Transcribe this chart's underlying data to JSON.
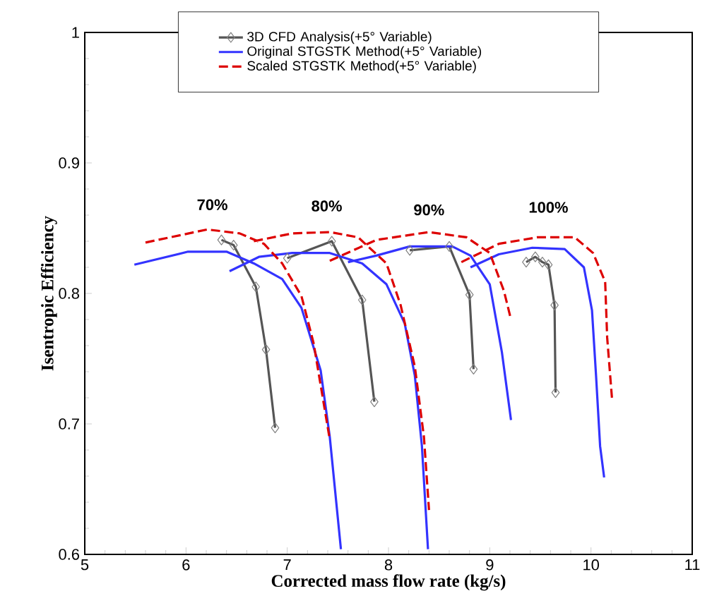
{
  "chart_data": {
    "type": "line",
    "xlabel": "Corrected mass flow rate (kg/s)",
    "ylabel": "Isentropic Efficiency",
    "xlim": [
      5,
      11
    ],
    "ylim": [
      0.6,
      1
    ],
    "xticks": [
      5,
      6,
      7,
      8,
      9,
      10,
      11
    ],
    "yticks": [
      0.6,
      0.7,
      0.8,
      0.9,
      1
    ],
    "legend": "top",
    "grid": false,
    "annotations": [
      "70%",
      "80%",
      "90%",
      "100%"
    ],
    "series": [
      {
        "name": "3D CFD Analysis(+5° Variable)",
        "color": "#555555",
        "marker": "diamond",
        "line_style": "solid",
        "x": [
          6.35,
          6.47,
          6.69,
          6.79,
          6.88,
          null,
          7.0,
          7.44,
          7.74,
          7.86,
          null,
          8.21,
          8.6,
          8.8,
          8.84,
          null,
          9.36,
          9.45,
          9.52,
          9.58,
          9.64,
          9.65
        ],
        "values": [
          0.841,
          0.837,
          0.805,
          0.757,
          0.697,
          null,
          0.827,
          0.84,
          0.795,
          0.717,
          null,
          0.833,
          0.836,
          0.799,
          0.742,
          null,
          0.824,
          0.828,
          0.824,
          0.822,
          0.791,
          0.724
        ]
      },
      {
        "name": "Original STGSTK Method(+5° Variable)",
        "color": "#3333ff",
        "marker": "none",
        "line_style": "solid",
        "x": [
          5.49,
          6.02,
          6.4,
          6.67,
          6.95,
          7.14,
          7.33,
          7.42,
          7.53,
          null,
          6.43,
          6.72,
          7.05,
          7.42,
          7.74,
          7.98,
          8.16,
          8.26,
          8.33,
          8.39,
          null,
          7.6,
          7.88,
          8.21,
          8.63,
          8.81,
          9.0,
          9.12,
          9.21,
          null,
          8.81,
          9.09,
          9.42,
          9.74,
          9.93,
          10.01,
          10.05,
          10.09,
          10.13
        ],
        "values": [
          0.822,
          0.832,
          0.832,
          0.823,
          0.811,
          0.789,
          0.741,
          0.69,
          0.604,
          null,
          0.817,
          0.828,
          0.831,
          0.831,
          0.823,
          0.807,
          0.777,
          0.737,
          0.683,
          0.604,
          null,
          0.824,
          0.829,
          0.836,
          0.836,
          0.829,
          0.807,
          0.755,
          0.703,
          null,
          0.82,
          0.83,
          0.835,
          0.834,
          0.82,
          0.787,
          0.737,
          0.683,
          0.659
        ]
      },
      {
        "name": "Scaled STGSTK Method(+5° Variable)",
        "color": "#dd0000",
        "marker": "none",
        "line_style": "dashed",
        "x": [
          5.6,
          6.21,
          6.53,
          6.77,
          6.95,
          7.14,
          7.26,
          7.42,
          null,
          6.67,
          7.05,
          7.42,
          7.7,
          7.98,
          8.12,
          8.26,
          8.35,
          8.4,
          null,
          7.42,
          7.88,
          8.4,
          8.77,
          9.0,
          9.14,
          9.21,
          null,
          8.72,
          9.09,
          9.47,
          9.84,
          10.02,
          10.14,
          10.16,
          10.21
        ],
        "values": [
          0.839,
          0.849,
          0.846,
          0.838,
          0.823,
          0.798,
          0.762,
          0.688,
          null,
          0.84,
          0.846,
          0.847,
          0.843,
          0.823,
          0.791,
          0.744,
          0.69,
          0.634,
          null,
          0.825,
          0.841,
          0.847,
          0.843,
          0.831,
          0.802,
          0.78,
          null,
          0.824,
          0.838,
          0.843,
          0.843,
          0.831,
          0.809,
          0.766,
          0.717
        ]
      }
    ]
  }
}
